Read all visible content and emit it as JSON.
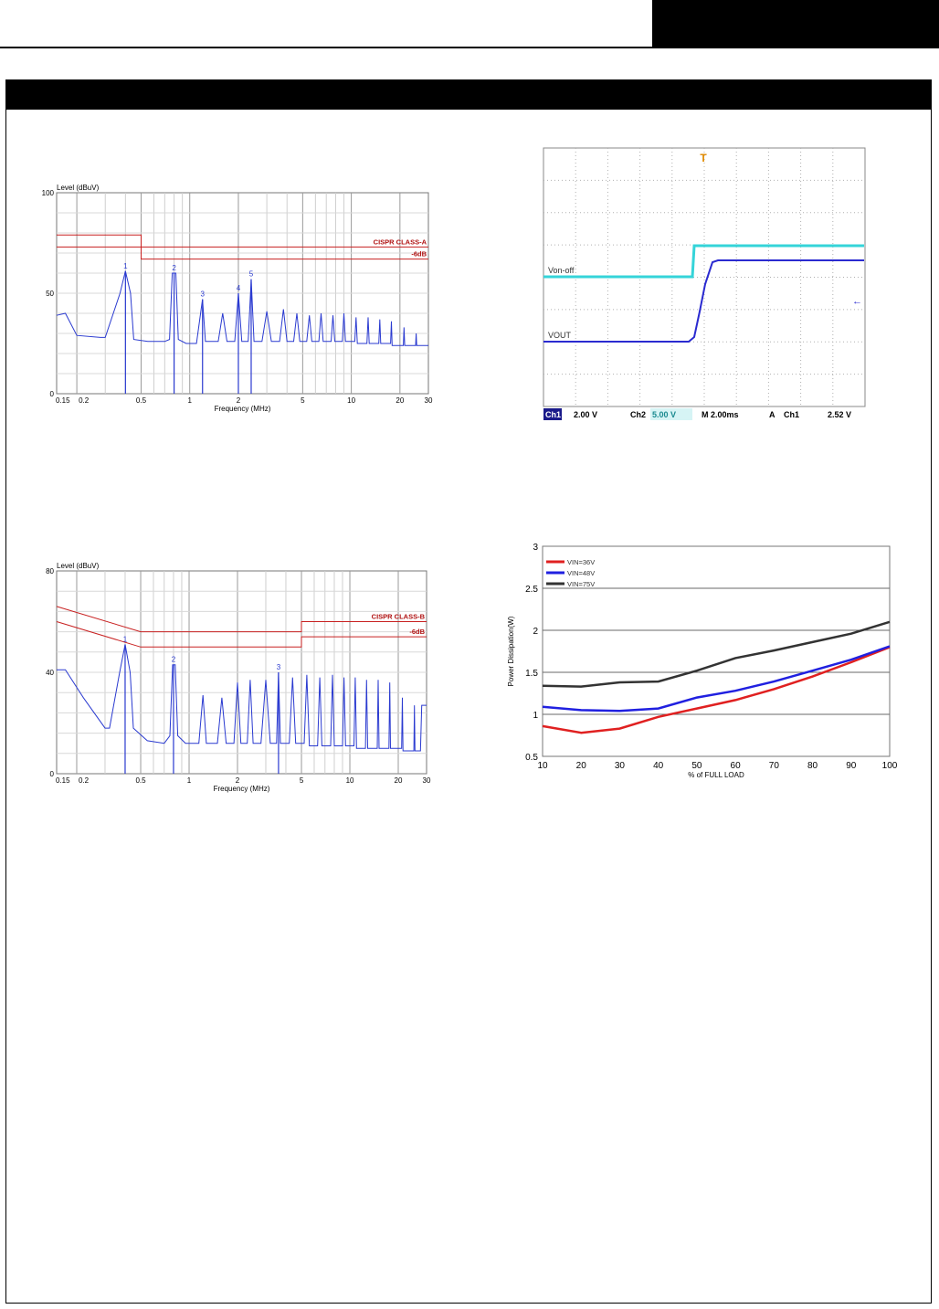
{
  "chart_data": [
    {
      "id": "emi-class-a",
      "type": "line",
      "title": "Level (dBuV)",
      "xlabel": "Frequency (MHz)",
      "ylabel": "Level (dBuV)",
      "x_scale": "log",
      "xlim": [
        0.15,
        30
      ],
      "ylim": [
        0,
        100
      ],
      "y_ticks": [
        "0",
        "50",
        "100"
      ],
      "x_ticks": [
        {
          "v": 0.15,
          "t": "0.15"
        },
        {
          "v": 0.2,
          "t": "0.2"
        },
        {
          "v": 0.5,
          "t": "0.5"
        },
        {
          "v": 1,
          "t": "1"
        },
        {
          "v": 2,
          "t": "2"
        },
        {
          "v": 5,
          "t": "5"
        },
        {
          "v": 10,
          "t": "10"
        },
        {
          "v": 20,
          "t": "20"
        },
        {
          "v": 30,
          "t": "30"
        }
      ],
      "limit_lines": [
        {
          "name": "CISPR CLASS-A",
          "points": [
            [
              0.15,
              79
            ],
            [
              0.5,
              79
            ],
            [
              0.5,
              73
            ],
            [
              30,
              73
            ]
          ]
        },
        {
          "name": "-6dB",
          "points": [
            [
              0.15,
              73
            ],
            [
              0.5,
              73
            ],
            [
              0.5,
              67
            ],
            [
              30,
              67
            ]
          ]
        }
      ],
      "series": [
        {
          "points": [
            [
              0.15,
              39
            ],
            [
              0.17,
              40
            ],
            [
              0.2,
              29
            ],
            [
              0.28,
              28
            ],
            [
              0.3,
              28
            ],
            [
              0.37,
              50
            ],
            [
              0.4,
              61
            ],
            [
              0.43,
              50
            ],
            [
              0.45,
              27
            ],
            [
              0.55,
              26
            ],
            [
              0.7,
              26
            ],
            [
              0.75,
              27
            ],
            [
              0.78,
              60
            ],
            [
              0.82,
              60
            ],
            [
              0.85,
              27
            ],
            [
              0.95,
              25
            ],
            [
              1.1,
              25
            ],
            [
              1.2,
              47
            ],
            [
              1.25,
              26
            ],
            [
              1.5,
              26
            ],
            [
              1.6,
              40
            ],
            [
              1.7,
              26
            ],
            [
              1.9,
              26
            ],
            [
              2.0,
              50
            ],
            [
              2.1,
              26
            ],
            [
              2.3,
              26
            ],
            [
              2.4,
              57
            ],
            [
              2.5,
              26
            ],
            [
              2.8,
              26
            ],
            [
              3.0,
              41
            ],
            [
              3.2,
              26
            ],
            [
              3.6,
              26
            ],
            [
              3.8,
              42
            ],
            [
              4.0,
              26
            ],
            [
              4.4,
              26
            ],
            [
              4.6,
              40
            ],
            [
              4.8,
              26
            ],
            [
              5.3,
              26
            ],
            [
              5.5,
              39
            ],
            [
              5.7,
              26
            ],
            [
              6.3,
              26
            ],
            [
              6.5,
              40
            ],
            [
              6.7,
              26
            ],
            [
              7.5,
              26
            ],
            [
              7.7,
              39
            ],
            [
              7.9,
              26
            ],
            [
              8.8,
              26
            ],
            [
              9.0,
              40
            ],
            [
              9.2,
              26
            ],
            [
              10.5,
              26
            ],
            [
              10.7,
              38
            ],
            [
              10.9,
              25
            ],
            [
              12.5,
              25
            ],
            [
              12.7,
              38
            ],
            [
              12.9,
              25
            ],
            [
              14.8,
              25
            ],
            [
              15.0,
              37
            ],
            [
              15.2,
              25
            ],
            [
              17.5,
              25
            ],
            [
              17.7,
              36
            ],
            [
              17.9,
              24
            ],
            [
              21.0,
              24
            ],
            [
              21.2,
              33
            ],
            [
              21.4,
              24
            ],
            [
              25.0,
              24
            ],
            [
              25.2,
              30
            ],
            [
              25.4,
              24
            ],
            [
              30,
              24
            ]
          ]
        }
      ],
      "markers": [
        {
          "label": "1",
          "x": 0.4,
          "y": 61
        },
        {
          "label": "2",
          "x": 0.8,
          "y": 60
        },
        {
          "label": "3",
          "x": 1.2,
          "y": 47
        },
        {
          "label": "4",
          "x": 2.0,
          "y": 50
        },
        {
          "label": "5",
          "x": 2.4,
          "y": 57
        }
      ],
      "grid": true
    },
    {
      "id": "emi-class-b",
      "type": "line",
      "title": "Level (dBuV)",
      "xlabel": "Frequency (MHz)",
      "ylabel": "Level (dBuV)",
      "x_scale": "log",
      "xlim": [
        0.15,
        30
      ],
      "ylim": [
        0,
        80
      ],
      "y_ticks": [
        "0",
        "40",
        "80"
      ],
      "x_ticks": [
        {
          "v": 0.15,
          "t": "0.15"
        },
        {
          "v": 0.2,
          "t": "0.2"
        },
        {
          "v": 0.5,
          "t": "0.5"
        },
        {
          "v": 1,
          "t": "1"
        },
        {
          "v": 2,
          "t": "2"
        },
        {
          "v": 5,
          "t": "5"
        },
        {
          "v": 10,
          "t": "10"
        },
        {
          "v": 20,
          "t": "20"
        },
        {
          "v": 30,
          "t": "30"
        }
      ],
      "limit_lines": [
        {
          "name": "CISPR CLASS-B",
          "points": [
            [
              0.15,
              66
            ],
            [
              0.5,
              56
            ],
            [
              5,
              56
            ],
            [
              5,
              60
            ],
            [
              30,
              60
            ]
          ]
        },
        {
          "name": "-6dB",
          "points": [
            [
              0.15,
              60
            ],
            [
              0.5,
              50
            ],
            [
              5,
              50
            ],
            [
              5,
              54
            ],
            [
              30,
              54
            ]
          ]
        }
      ],
      "series": [
        {
          "points": [
            [
              0.15,
              41
            ],
            [
              0.17,
              41
            ],
            [
              0.22,
              30
            ],
            [
              0.3,
              18
            ],
            [
              0.32,
              18
            ],
            [
              0.37,
              40
            ],
            [
              0.4,
              51
            ],
            [
              0.43,
              40
            ],
            [
              0.45,
              18
            ],
            [
              0.55,
              13
            ],
            [
              0.7,
              12
            ],
            [
              0.76,
              15
            ],
            [
              0.79,
              43
            ],
            [
              0.82,
              43
            ],
            [
              0.85,
              15
            ],
            [
              0.95,
              12
            ],
            [
              1.15,
              12
            ],
            [
              1.22,
              31
            ],
            [
              1.28,
              12
            ],
            [
              1.5,
              12
            ],
            [
              1.6,
              30
            ],
            [
              1.7,
              12
            ],
            [
              1.9,
              12
            ],
            [
              2.0,
              36
            ],
            [
              2.1,
              12
            ],
            [
              2.3,
              12
            ],
            [
              2.4,
              37
            ],
            [
              2.5,
              12
            ],
            [
              2.8,
              12
            ],
            [
              3.0,
              37
            ],
            [
              3.2,
              12
            ],
            [
              3.5,
              12
            ],
            [
              3.6,
              40
            ],
            [
              3.7,
              12
            ],
            [
              4.2,
              12
            ],
            [
              4.4,
              38
            ],
            [
              4.6,
              12
            ],
            [
              5.2,
              12
            ],
            [
              5.4,
              39
            ],
            [
              5.6,
              11
            ],
            [
              6.3,
              11
            ],
            [
              6.5,
              38
            ],
            [
              6.7,
              11
            ],
            [
              7.6,
              11
            ],
            [
              7.8,
              39
            ],
            [
              8.0,
              11
            ],
            [
              9.0,
              11
            ],
            [
              9.2,
              38
            ],
            [
              9.4,
              11
            ],
            [
              10.6,
              11
            ],
            [
              10.8,
              38
            ],
            [
              11.0,
              10
            ],
            [
              12.5,
              10
            ],
            [
              12.7,
              37
            ],
            [
              12.9,
              10
            ],
            [
              14.8,
              10
            ],
            [
              15.0,
              37
            ],
            [
              15.2,
              10
            ],
            [
              17.5,
              10
            ],
            [
              17.7,
              36
            ],
            [
              17.9,
              10
            ],
            [
              21.0,
              10
            ],
            [
              21.2,
              30
            ],
            [
              21.4,
              9
            ],
            [
              25.0,
              9
            ],
            [
              25.2,
              27
            ],
            [
              25.4,
              9
            ],
            [
              27.5,
              9
            ],
            [
              28,
              27
            ],
            [
              30,
              27
            ]
          ]
        }
      ],
      "markers": [
        {
          "label": "1",
          "x": 0.4,
          "y": 51
        },
        {
          "label": "2",
          "x": 0.8,
          "y": 43
        },
        {
          "label": "3",
          "x": 3.6,
          "y": 40
        }
      ],
      "grid": true
    },
    {
      "id": "power-dissipation",
      "type": "line",
      "title": "",
      "xlabel": "% of FULL LOAD",
      "ylabel": "Power Dissipation(W)",
      "xlim": [
        10,
        100
      ],
      "ylim": [
        0.5,
        3
      ],
      "x_ticks": [
        "10",
        "20",
        "30",
        "40",
        "50",
        "60",
        "70",
        "80",
        "90",
        "100"
      ],
      "y_ticks": [
        "0.5",
        "1",
        "1.5",
        "2",
        "2.5",
        "3"
      ],
      "categories": [
        10,
        20,
        30,
        40,
        50,
        60,
        70,
        80,
        90,
        100
      ],
      "series": [
        {
          "name": "VIN=36V",
          "color": "#e02020",
          "values": [
            0.86,
            0.78,
            0.83,
            0.97,
            1.07,
            1.17,
            1.3,
            1.45,
            1.62,
            1.8
          ]
        },
        {
          "name": "VIN=48V",
          "color": "#2020e0",
          "values": [
            1.09,
            1.05,
            1.04,
            1.07,
            1.2,
            1.28,
            1.39,
            1.52,
            1.65,
            1.81
          ]
        },
        {
          "name": "VIN=75V",
          "color": "#333333",
          "values": [
            1.34,
            1.33,
            1.38,
            1.39,
            1.52,
            1.67,
            1.76,
            1.86,
            1.96,
            2.1
          ]
        }
      ],
      "legend": "top-left",
      "grid": true
    },
    {
      "id": "scope-on-off",
      "type": "line",
      "title": "",
      "series": [
        {
          "name": "Von-off",
          "color": "#35d4d9"
        },
        {
          "name": "VOUT",
          "color": "#2a2ad0"
        }
      ],
      "status_bar": {
        "ch1_tag": "Ch1",
        "ch1": "2.00 V",
        "ch2": "Ch2",
        "ch2_value": "5.00 V",
        "time": "M 2.00ms",
        "trigger": "A",
        "trigger_ch": "Ch1",
        "trigger_level": "2.52 V"
      },
      "grid": true
    }
  ]
}
